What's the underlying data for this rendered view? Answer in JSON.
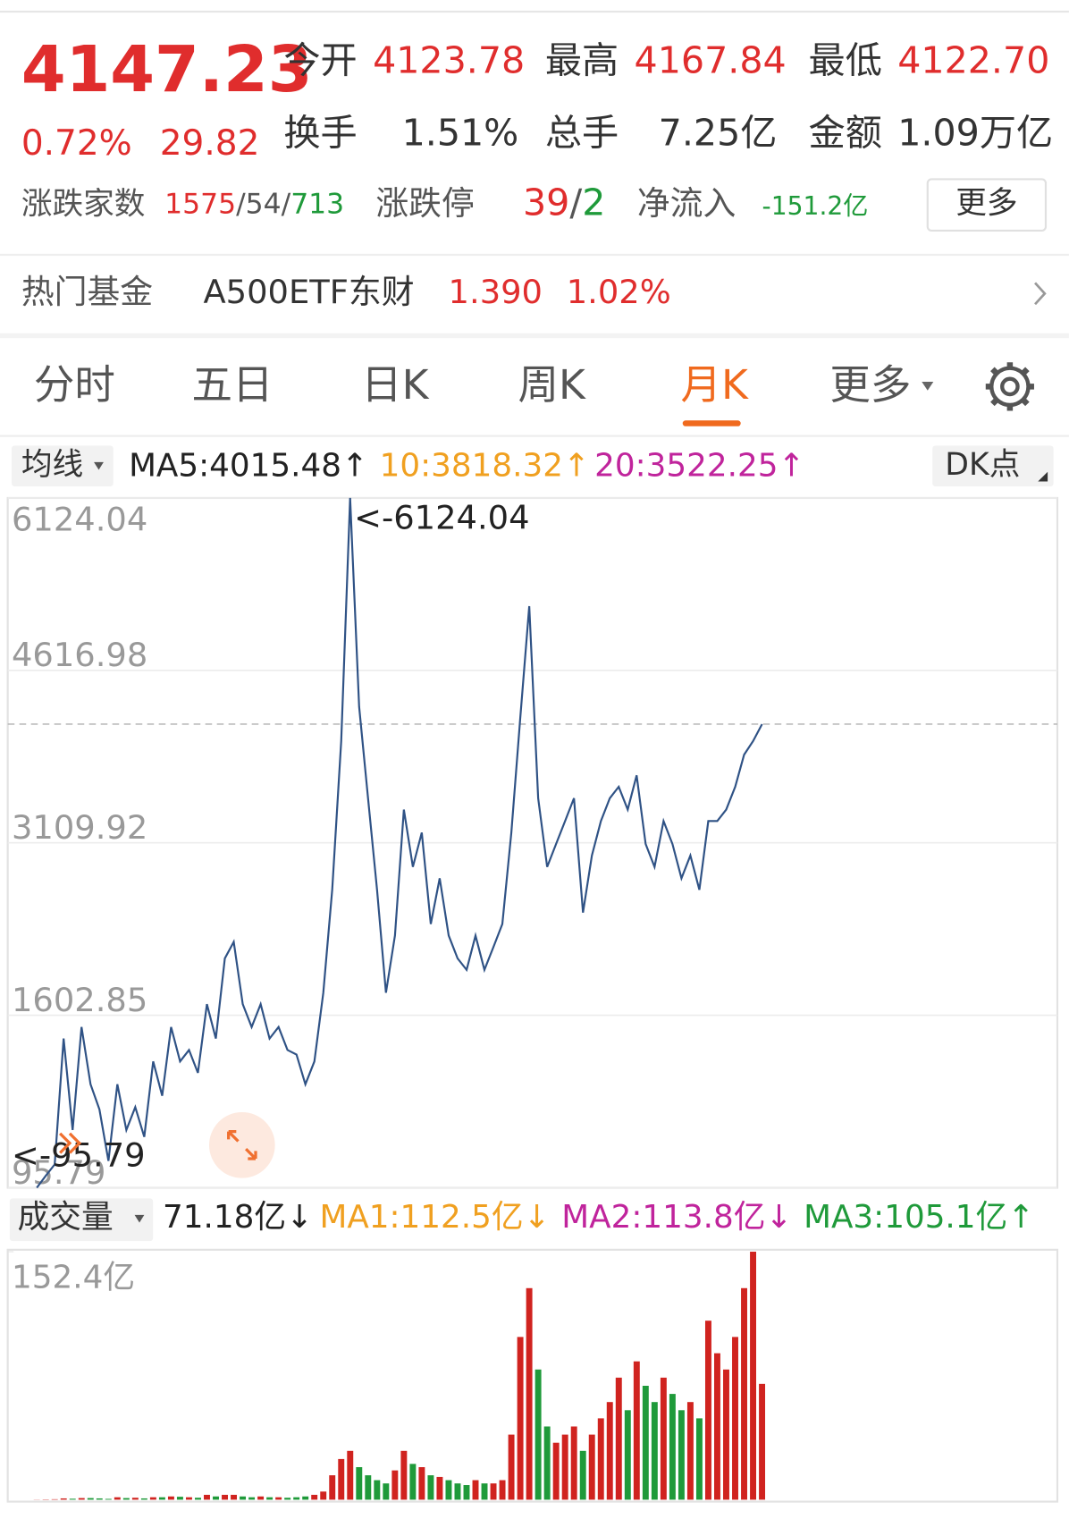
{
  "header": {
    "price": "4147.23",
    "change_pct": "0.72%",
    "change": "29.82",
    "stats": [
      {
        "label": "今开",
        "value": "4123.78"
      },
      {
        "label": "最高",
        "value": "4167.84"
      },
      {
        "label": "最低",
        "value": "4122.70"
      },
      {
        "label": "换手",
        "value": "1.51%"
      },
      {
        "label": "总手",
        "value": "7.25亿"
      },
      {
        "label": "金额",
        "value": "1.09万亿"
      }
    ],
    "breadth": {
      "label": "涨跌家数",
      "up": "1575",
      "flat": "/54/",
      "down": "713"
    },
    "limit": {
      "label": "涨跌停",
      "up": "39",
      "sep": "/",
      "down": "2"
    },
    "net_inflow": {
      "label": "净流入",
      "value": "-151.2亿"
    },
    "more_button": "更多"
  },
  "fund": {
    "label": "热门基金",
    "name": "A500ETF东财",
    "price": "1.390",
    "change_pct": "1.02%"
  },
  "tabs": {
    "items": [
      "分时",
      "五日",
      "日K",
      "周K",
      "月K",
      "更多"
    ],
    "active": 4
  },
  "ma_bar": {
    "selector": "均线",
    "ma5": "MA5:4015.48↑",
    "ma10": "10:3818.32↑",
    "ma20": "20:3522.25↑",
    "dk": "DK点"
  },
  "chart_data": [
    {
      "type": "line",
      "color": "#2f5285",
      "ylim": [
        95.79,
        6124.04
      ],
      "yticks": [
        6124.04,
        4616.98,
        3109.92,
        1602.85,
        95.79
      ],
      "grid": true,
      "reference_line": 4147.23,
      "max_label": "<-6124.04",
      "min_label": "<-95.79",
      "values": [
        95.79,
        200,
        300,
        1400,
        600,
        1500,
        1000,
        780,
        330,
        1000,
        600,
        800,
        540,
        1200,
        900,
        1500,
        1200,
        1300,
        1100,
        1700,
        1400,
        2100,
        2245,
        1700,
        1500,
        1700,
        1400,
        1500,
        1300,
        1260,
        1000,
        1200,
        1800,
        2700,
        4000,
        6124.04,
        4300,
        3500,
        2700,
        1800,
        2300,
        3400,
        2900,
        3200,
        2400,
        2800,
        2300,
        2100,
        2000,
        2300,
        2000,
        2200,
        2400,
        3200,
        4200,
        5178,
        3500,
        2900,
        3100,
        3300,
        3500,
        2500,
        3000,
        3300,
        3500,
        3600,
        3400,
        3700,
        3100,
        2900,
        3300,
        3100,
        2800,
        3000,
        2700,
        3300,
        3300,
        3400,
        3600,
        3880,
        4000,
        4147.23
      ]
    },
    {
      "type": "bar",
      "name": "成交量",
      "current": "71.18亿↓",
      "ma1": "MA1:112.5亿↓",
      "ma2": "MA2:113.8亿↓",
      "ma3": "MA3:105.1亿↑",
      "ylim": [
        0,
        152.4
      ],
      "yticks": [
        {
          "value": 152.4,
          "label": "152.4亿"
        }
      ],
      "up_color": "#d0231f",
      "down_color": "#1f9a3a",
      "values": [
        0.1,
        0.2,
        0.3,
        0.8,
        0.6,
        1,
        1,
        0.8,
        0.5,
        1.5,
        1,
        1.2,
        0.8,
        1.5,
        1.5,
        2,
        1.8,
        1.5,
        1.2,
        3,
        2,
        3,
        3,
        2,
        1.5,
        2,
        1.5,
        1.5,
        1.2,
        1.5,
        2,
        3,
        5,
        15,
        25,
        30,
        20,
        15,
        12,
        10,
        18,
        30,
        22,
        20,
        15,
        14,
        12,
        10,
        9,
        12,
        10,
        10,
        12,
        40,
        100,
        130,
        80,
        45,
        35,
        40,
        45,
        30,
        40,
        50,
        60,
        75,
        55,
        85,
        70,
        60,
        75,
        65,
        55,
        60,
        50,
        110,
        90,
        80,
        100,
        130,
        152.4,
        71.18
      ]
    }
  ]
}
